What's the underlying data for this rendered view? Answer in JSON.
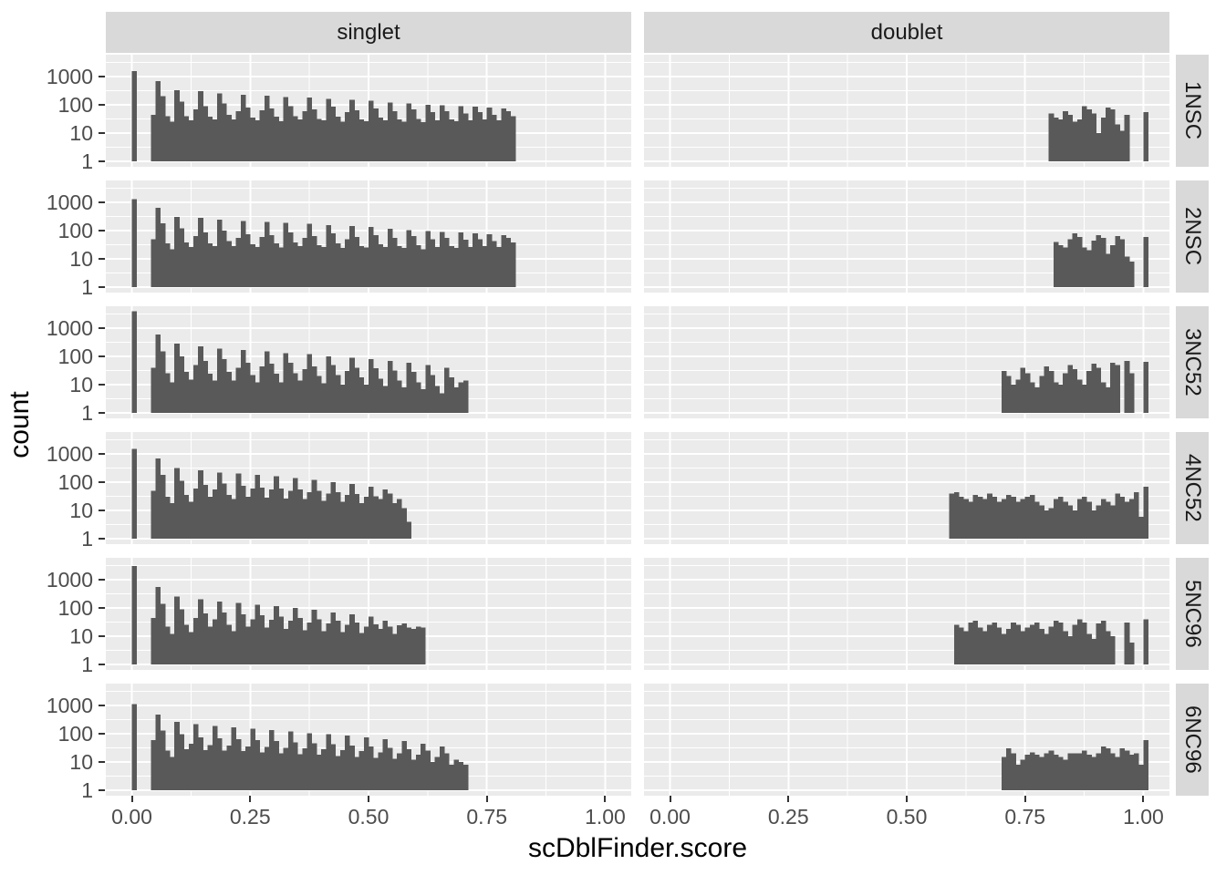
{
  "figure": {
    "background": "#FFFFFF",
    "panel_bg": "#EBEBEB",
    "strip_bg": "#D9D9D9",
    "bar_color": "#595959",
    "grid_color": "#FFFFFF",
    "tick_mark_color": "#333333",
    "tick_label_color": "#4D4D4D",
    "strip_text_color": "#1A1A1A",
    "title_color": "#000000"
  },
  "chart_data": {
    "type": "bar",
    "subtype": "faceted-histogram",
    "title": "",
    "xlabel": "scDblFinder.score",
    "ylabel": "count",
    "y_scale": "log10",
    "grid": true,
    "legend": "none",
    "col_facets": [
      "singlet",
      "doublet"
    ],
    "row_facets": [
      "1NSC",
      "2NSC",
      "3NC52",
      "4NC52",
      "5NC96",
      "6NC96"
    ],
    "x_ticks": [
      {
        "label": "0.00",
        "value": 0.0
      },
      {
        "label": "0.25",
        "value": 0.25
      },
      {
        "label": "0.50",
        "value": 0.5
      },
      {
        "label": "0.75",
        "value": 0.75
      },
      {
        "label": "1.00",
        "value": 1.0
      }
    ],
    "y_ticks": [
      {
        "label": "1000",
        "value": 1000
      },
      {
        "label": "100",
        "value": 100
      },
      {
        "label": "10",
        "value": 10
      },
      {
        "label": "1",
        "value": 1
      }
    ],
    "y_minor_ticks": [
      3.162,
      31.62,
      316.2,
      3162
    ],
    "x_minor_ticks": [
      0.125,
      0.375,
      0.625,
      0.875
    ],
    "xlim": [
      -0.055,
      1.055
    ],
    "ylim_log10": [
      -0.19,
      3.78
    ],
    "binwidth": 0.01,
    "facets": [
      {
        "row": "1NSC",
        "col": "singlet",
        "segments": [
          {
            "x0": 0.0,
            "counts": [
              1550
            ]
          },
          {
            "x0": 0.04,
            "counts": [
              45,
              700,
              200,
              40,
              25,
              330,
              130,
              40,
              28,
              70,
              300,
              90,
              38,
              30,
              250,
              110,
              45,
              30,
              60,
              230,
              80,
              35,
              28,
              65,
              210,
              75,
              38,
              26,
              190,
              90,
              40,
              30,
              60,
              180,
              70,
              32,
              28,
              160,
              85,
              38,
              25,
              55,
              150,
              65,
              30,
              26,
              140,
              75,
              35,
              28,
              120,
              60,
              30,
              25,
              110,
              70,
              32,
              24,
              100,
              55,
              28,
              95,
              60,
              30,
              26,
              90,
              50,
              28,
              85,
              55,
              30,
              80,
              45,
              28,
              75,
              60,
              40
            ]
          }
        ]
      },
      {
        "row": "1NSC",
        "col": "doublet",
        "segments": [
          {
            "x0": 0.8,
            "counts": [
              50,
              35,
              30,
              60,
              45,
              25,
              30,
              90,
              70,
              50,
              10,
              35,
              80,
              70,
              20,
              12,
              45
            ]
          },
          {
            "x0": 1.0,
            "counts": [
              55
            ]
          }
        ]
      },
      {
        "row": "2NSC",
        "col": "singlet",
        "segments": [
          {
            "x0": 0.0,
            "counts": [
              1300
            ]
          },
          {
            "x0": 0.04,
            "counts": [
              50,
              650,
              180,
              35,
              22,
              300,
              120,
              38,
              26,
              65,
              280,
              85,
              36,
              28,
              240,
              100,
              42,
              28,
              55,
              220,
              75,
              33,
              26,
              60,
              200,
              70,
              36,
              25,
              185,
              85,
              38,
              28,
              55,
              175,
              65,
              30,
              26,
              155,
              80,
              36,
              24,
              50,
              145,
              60,
              28,
              25,
              135,
              70,
              33,
              26,
              115,
              55,
              28,
              24,
              105,
              65,
              30,
              22,
              95,
              50,
              26,
              90,
              55,
              28,
              24,
              85,
              48,
              26,
              80,
              50,
              28,
              75,
              42,
              26,
              70,
              55,
              38
            ]
          }
        ]
      },
      {
        "row": "2NSC",
        "col": "doublet",
        "segments": [
          {
            "x0": 0.81,
            "counts": [
              40,
              30,
              25,
              50,
              80,
              60,
              25,
              20,
              45,
              70,
              55,
              15,
              30,
              65,
              50,
              12,
              8
            ]
          },
          {
            "x0": 1.0,
            "counts": [
              60
            ]
          }
        ]
      },
      {
        "row": "3NC52",
        "col": "singlet",
        "segments": [
          {
            "x0": 0.0,
            "counts": [
              4000
            ]
          },
          {
            "x0": 0.04,
            "counts": [
              40,
              600,
              150,
              25,
              12,
              280,
              100,
              28,
              15,
              50,
              230,
              70,
              24,
              14,
              190,
              80,
              28,
              14,
              40,
              170,
              60,
              22,
              12,
              45,
              150,
              55,
              24,
              12,
              130,
              60,
              25,
              14,
              35,
              120,
              45,
              20,
              11,
              100,
              50,
              22,
              10,
              30,
              90,
              40,
              18,
              10,
              80,
              38,
              16,
              9,
              70,
              32,
              14,
              8,
              60,
              28,
              12,
              7,
              50,
              22,
              9,
              5,
              40,
              18,
              8,
              12,
              14
            ]
          }
        ]
      },
      {
        "row": "3NC52",
        "col": "doublet",
        "segments": [
          {
            "x0": 0.7,
            "counts": [
              30,
              20,
              10,
              15,
              40,
              25,
              12,
              8,
              20,
              45,
              30,
              12,
              10,
              25,
              50,
              35,
              15,
              10,
              30,
              55,
              40,
              12,
              8,
              60,
              50
            ]
          },
          {
            "x0": 0.96,
            "counts": [
              70,
              25
            ]
          },
          {
            "x0": 1.0,
            "counts": [
              65
            ]
          }
        ]
      },
      {
        "row": "4NC52",
        "col": "singlet",
        "segments": [
          {
            "x0": 0.0,
            "counts": [
              1500
            ]
          },
          {
            "x0": 0.04,
            "counts": [
              50,
              700,
              180,
              30,
              18,
              320,
              110,
              35,
              20,
              60,
              260,
              80,
              30,
              55,
              220,
              90,
              35,
              25,
              200,
              75,
              30,
              60,
              180,
              65,
              28,
              55,
              160,
              60,
              26,
              50,
              140,
              55,
              25,
              45,
              120,
              50,
              22,
              40,
              100,
              45,
              20,
              35,
              85,
              38,
              18,
              30,
              70,
              32,
              25,
              55,
              40,
              18,
              25,
              12,
              4
            ]
          }
        ]
      },
      {
        "row": "4NC52",
        "col": "doublet",
        "segments": [
          {
            "x0": 0.59,
            "counts": [
              40,
              45,
              30,
              25,
              20,
              35,
              30,
              25,
              40,
              30,
              20,
              25,
              35,
              30,
              20,
              25,
              30,
              35,
              20,
              15,
              10,
              12,
              25,
              30,
              20,
              15,
              10,
              25,
              30,
              20,
              10,
              15,
              25,
              20,
              15,
              40,
              30,
              20,
              25,
              45,
              6
            ]
          },
          {
            "x0": 1.0,
            "counts": [
              70
            ]
          }
        ]
      },
      {
        "row": "5NC96",
        "col": "singlet",
        "segments": [
          {
            "x0": 0.0,
            "counts": [
              3000
            ]
          },
          {
            "x0": 0.04,
            "counts": [
              45,
              550,
              140,
              22,
              12,
              250,
              90,
              25,
              14,
              45,
              200,
              65,
              22,
              40,
              170,
              70,
              25,
              15,
              150,
              60,
              22,
              40,
              130,
              55,
              20,
              38,
              115,
              50,
              18,
              35,
              100,
              45,
              16,
              30,
              85,
              40,
              15,
              28,
              70,
              35,
              14,
              25,
              60,
              30,
              13,
              22,
              50,
              26,
              18,
              35,
              22,
              12,
              24,
              28,
              20,
              18,
              22,
              20
            ]
          }
        ]
      },
      {
        "row": "5NC96",
        "col": "doublet",
        "segments": [
          {
            "x0": 0.6,
            "counts": [
              25,
              20,
              15,
              30,
              35,
              20,
              15,
              25,
              30,
              20,
              12,
              18,
              30,
              25,
              15,
              20,
              25,
              30,
              18,
              12,
              22,
              35,
              30,
              15,
              10,
              25,
              40,
              30,
              12,
              8,
              28,
              35,
              15,
              10
            ]
          },
          {
            "x0": 0.96,
            "counts": [
              30,
              6
            ]
          },
          {
            "x0": 1.0,
            "counts": [
              40
            ]
          }
        ]
      },
      {
        "row": "6NC96",
        "col": "singlet",
        "segments": [
          {
            "x0": 0.0,
            "counts": [
              1100
            ]
          },
          {
            "x0": 0.04,
            "counts": [
              60,
              480,
              130,
              25,
              15,
              260,
              95,
              28,
              45,
              220,
              75,
              26,
              40,
              190,
              70,
              25,
              38,
              170,
              65,
              24,
              36,
              150,
              60,
              22,
              34,
              135,
              55,
              20,
              32,
              120,
              50,
              19,
              30,
              105,
              46,
              18,
              28,
              95,
              42,
              16,
              26,
              85,
              38,
              15,
              24,
              75,
              35,
              14,
              22,
              65,
              32,
              13,
              20,
              55,
              28,
              12,
              18,
              45,
              25,
              10,
              15,
              35,
              20,
              8,
              12,
              10,
              8
            ]
          }
        ]
      },
      {
        "row": "6NC96",
        "col": "doublet",
        "segments": [
          {
            "x0": 0.7,
            "counts": [
              15,
              30,
              20,
              8,
              12,
              18,
              22,
              18,
              15,
              20,
              25,
              18,
              15,
              12,
              20,
              20,
              20,
              25,
              18,
              15,
              20,
              35,
              30,
              20,
              15,
              30,
              25,
              18,
              20,
              8
            ]
          },
          {
            "x0": 1.0,
            "counts": [
              60
            ]
          }
        ]
      }
    ]
  }
}
